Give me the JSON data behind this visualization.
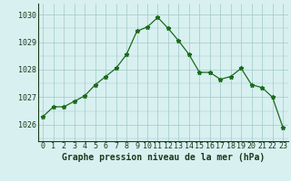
{
  "x": [
    0,
    1,
    2,
    3,
    4,
    5,
    6,
    7,
    8,
    9,
    10,
    11,
    12,
    13,
    14,
    15,
    16,
    17,
    18,
    19,
    20,
    21,
    22,
    23
  ],
  "y": [
    1026.3,
    1026.65,
    1026.65,
    1026.85,
    1027.05,
    1027.45,
    1027.75,
    1028.05,
    1028.55,
    1029.4,
    1029.55,
    1029.9,
    1029.5,
    1029.05,
    1028.55,
    1027.9,
    1027.9,
    1027.65,
    1027.75,
    1028.05,
    1027.45,
    1027.35,
    1027.0,
    1025.9
  ],
  "line_color": "#1a6b1a",
  "marker": "*",
  "marker_size": 3.5,
  "bg_color": "#d8f0f0",
  "grid_color": "#a0c8c8",
  "title": "Graphe pression niveau de la mer (hPa)",
  "ylabel_labels": [
    1026,
    1027,
    1028,
    1029,
    1030
  ],
  "ylim": [
    1025.4,
    1030.4
  ],
  "xlim": [
    -0.5,
    23.5
  ],
  "xtick_labels": [
    "0",
    "1",
    "2",
    "3",
    "4",
    "5",
    "6",
    "7",
    "8",
    "9",
    "10",
    "11",
    "12",
    "13",
    "14",
    "15",
    "16",
    "17",
    "18",
    "19",
    "20",
    "21",
    "22",
    "23"
  ],
  "title_fontsize": 7.0,
  "title_color": "#1a3a1a",
  "tick_fontsize": 6.0,
  "linewidth": 0.9
}
